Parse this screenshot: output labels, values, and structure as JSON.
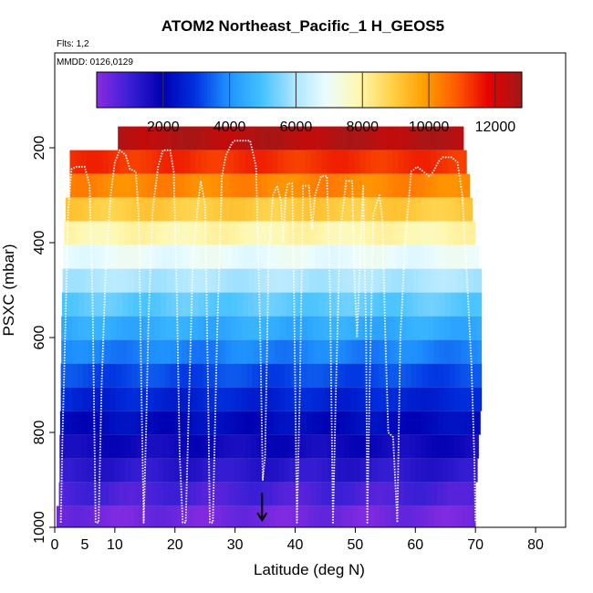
{
  "chart_data": {
    "type": "heatmap",
    "title": "ATOM2 Northeast_Pacific_1 H_GEOS5",
    "flights_note": "Flts: 1,2",
    "dates_note": "MMDD: 0126,0129",
    "xlabel": "Latitude (deg N)",
    "ylabel": "PSXC (mbar)",
    "xlim": [
      0,
      85
    ],
    "ylim": [
      1000,
      0
    ],
    "x_ticks": [
      0,
      10,
      20,
      30,
      40,
      50,
      60,
      70,
      80
    ],
    "x_tick_labels": [
      "0",
      "5",
      "10",
      "20",
      "30",
      "40",
      "50",
      "60",
      "70",
      "80"
    ],
    "x_tick_label_values": [
      0,
      5,
      10,
      20,
      30,
      40,
      50,
      60,
      70,
      80
    ],
    "y_ticks": [
      200,
      400,
      600,
      800,
      1000
    ],
    "y_tick_labels": [
      "200",
      "400",
      "600",
      "800",
      "1000"
    ],
    "colorbar": {
      "min": 0,
      "max": 12800,
      "ticks": [
        2000,
        4000,
        6000,
        8000,
        10000,
        12000
      ],
      "tick_labels": [
        "2000",
        "4000",
        "6000",
        "8000",
        "10000",
        "12000"
      ],
      "colors": [
        "#8a2be2",
        "#3a1fd6",
        "#0000b0",
        "#0030e0",
        "#1e90ff",
        "#40c0ff",
        "#a8e4ff",
        "#eafcff",
        "#fff8b0",
        "#ffd24a",
        "#ffa000",
        "#ff5a00",
        "#e60000",
        "#a01818"
      ]
    },
    "layers": [
      {
        "p": 180,
        "h": 12500,
        "lat_start": 10.5,
        "lat_end": 68
      },
      {
        "p": 230,
        "h": 11300,
        "lat_start": 2.5,
        "lat_end": 68.5
      },
      {
        "p": 280,
        "h": 10200,
        "lat_start": 2.5,
        "lat_end": 69
      },
      {
        "p": 330,
        "h": 9000,
        "lat_start": 1.8,
        "lat_end": 69.5
      },
      {
        "p": 380,
        "h": 7900,
        "lat_start": 1.6,
        "lat_end": 70
      },
      {
        "p": 430,
        "h": 6900,
        "lat_start": 1.4,
        "lat_end": 70.5
      },
      {
        "p": 480,
        "h": 6000,
        "lat_start": 1.3,
        "lat_end": 71
      },
      {
        "p": 530,
        "h": 5200,
        "lat_start": 1.2,
        "lat_end": 71
      },
      {
        "p": 580,
        "h": 4500,
        "lat_start": 1.1,
        "lat_end": 71
      },
      {
        "p": 630,
        "h": 3800,
        "lat_start": 1.1,
        "lat_end": 71
      },
      {
        "p": 680,
        "h": 3200,
        "lat_start": 1.0,
        "lat_end": 71
      },
      {
        "p": 730,
        "h": 2700,
        "lat_start": 1.0,
        "lat_end": 71
      },
      {
        "p": 780,
        "h": 2200,
        "lat_start": 0.9,
        "lat_end": 70.8
      },
      {
        "p": 830,
        "h": 1700,
        "lat_start": 0.8,
        "lat_end": 70.5
      },
      {
        "p": 880,
        "h": 1250,
        "lat_start": 0.8,
        "lat_end": 70.3
      },
      {
        "p": 930,
        "h": 800,
        "lat_start": 0.7,
        "lat_end": 70
      },
      {
        "p": 980,
        "h": 300,
        "lat_start": 0.3,
        "lat_end": 70
      }
    ],
    "flight_track": [
      [
        1.0,
        990
      ],
      [
        1.3,
        800
      ],
      [
        1.8,
        560
      ],
      [
        2.2,
        340
      ],
      [
        2.8,
        245
      ],
      [
        3.5,
        240
      ],
      [
        5.0,
        240
      ],
      [
        5.8,
        280
      ],
      [
        6.3,
        520
      ],
      [
        6.8,
        990
      ],
      [
        7.3,
        990
      ],
      [
        7.8,
        700
      ],
      [
        8.5,
        450
      ],
      [
        9.3,
        300
      ],
      [
        10.0,
        230
      ],
      [
        10.8,
        205
      ],
      [
        11.8,
        215
      ],
      [
        12.5,
        245
      ],
      [
        13.5,
        250
      ],
      [
        14.0,
        350
      ],
      [
        14.4,
        700
      ],
      [
        14.8,
        990
      ],
      [
        15.2,
        800
      ],
      [
        15.6,
        560
      ],
      [
        16.3,
        330
      ],
      [
        17.2,
        240
      ],
      [
        18.0,
        205
      ],
      [
        19.2,
        205
      ],
      [
        19.8,
        250
      ],
      [
        20.3,
        500
      ],
      [
        20.8,
        850
      ],
      [
        21.3,
        990
      ],
      [
        21.8,
        990
      ],
      [
        22.3,
        750
      ],
      [
        23.0,
        430
      ],
      [
        24.0,
        300
      ],
      [
        24.3,
        270
      ],
      [
        25.0,
        320
      ],
      [
        25.5,
        700
      ],
      [
        25.8,
        990
      ],
      [
        26.3,
        990
      ],
      [
        27.0,
        600
      ],
      [
        27.8,
        260
      ],
      [
        28.5,
        215
      ],
      [
        29.5,
        190
      ],
      [
        30.0,
        185
      ],
      [
        32.5,
        185
      ],
      [
        33.5,
        240
      ],
      [
        34.2,
        600
      ],
      [
        34.6,
        900
      ],
      [
        35.0,
        850
      ],
      [
        35.6,
        430
      ],
      [
        36.3,
        300
      ],
      [
        37.0,
        280
      ],
      [
        37.6,
        310
      ],
      [
        38.0,
        400
      ],
      [
        38.4,
        300
      ],
      [
        38.8,
        275
      ],
      [
        39.5,
        275
      ],
      [
        39.8,
        500
      ],
      [
        40.3,
        990
      ],
      [
        40.8,
        700
      ],
      [
        41.3,
        280
      ],
      [
        42.3,
        280
      ],
      [
        42.8,
        370
      ],
      [
        43.3,
        300
      ],
      [
        44.3,
        260
      ],
      [
        45.3,
        260
      ],
      [
        45.8,
        500
      ],
      [
        46.3,
        990
      ],
      [
        46.8,
        700
      ],
      [
        47.5,
        380
      ],
      [
        48.5,
        270
      ],
      [
        49.5,
        270
      ],
      [
        49.8,
        450
      ],
      [
        50.3,
        600
      ],
      [
        50.8,
        430
      ],
      [
        51.3,
        280
      ],
      [
        51.8,
        600
      ],
      [
        52.0,
        990
      ],
      [
        52.4,
        700
      ],
      [
        53.0,
        340
      ],
      [
        54.0,
        300
      ],
      [
        54.5,
        350
      ],
      [
        55.0,
        600
      ],
      [
        55.5,
        800
      ],
      [
        56.3,
        810
      ],
      [
        57.0,
        990
      ],
      [
        57.5,
        600
      ],
      [
        58.3,
        400
      ],
      [
        59.3,
        250
      ],
      [
        60.3,
        240
      ],
      [
        61.3,
        250
      ],
      [
        62.3,
        260
      ],
      [
        63.0,
        250
      ],
      [
        63.8,
        230
      ],
      [
        64.5,
        220
      ],
      [
        66.0,
        220
      ],
      [
        67.0,
        230
      ],
      [
        67.8,
        300
      ],
      [
        68.6,
        480
      ],
      [
        69.3,
        650
      ],
      [
        69.8,
        850
      ],
      [
        70.0,
        990
      ]
    ],
    "marker": {
      "lat": 34.5,
      "p": 985
    }
  }
}
